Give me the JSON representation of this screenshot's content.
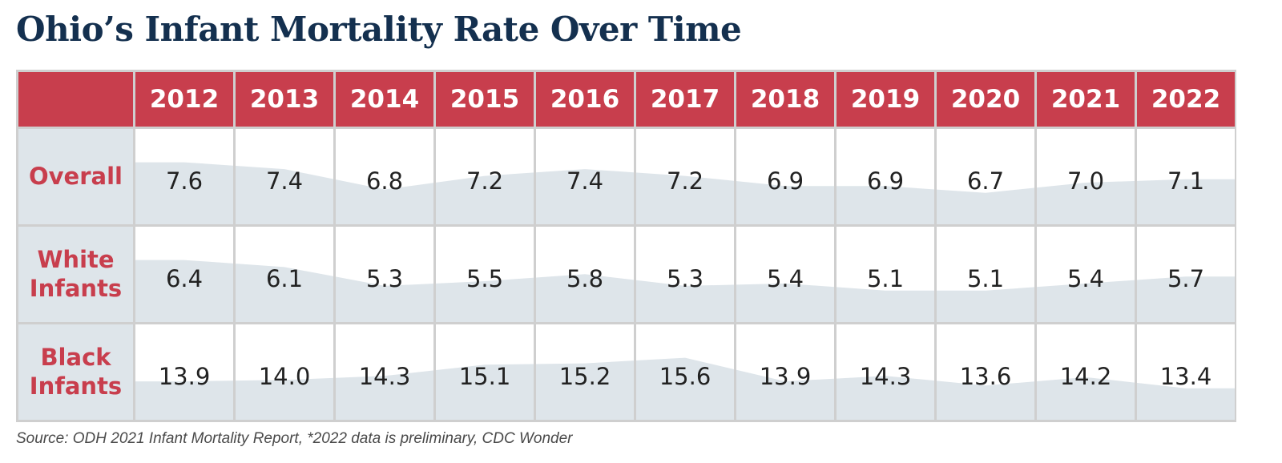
{
  "title": "Ohio’s Infant Mortality Rate Over Time",
  "source": "Source:  ODH 2021 Infant Mortality Report, *2022 data is preliminary, CDC Wonder",
  "colors": {
    "header_bg": "#c83e4d",
    "title": "#14304f",
    "row_label": "#c83e4d",
    "area_fill": "#dee5ea",
    "grid": "#cfcfcf"
  },
  "chart_data": {
    "type": "table",
    "title": "Ohio’s Infant Mortality Rate Over Time",
    "columns": [
      "2012",
      "2013",
      "2014",
      "2015",
      "2016",
      "2017",
      "2018",
      "2019",
      "2020",
      "2021",
      "2022"
    ],
    "rows": [
      {
        "label_lines": [
          "Overall"
        ],
        "values": [
          "7.6",
          "7.4",
          "6.8",
          "7.2",
          "7.4",
          "7.2",
          "6.9",
          "6.9",
          "6.7",
          "7.0",
          "7.1"
        ]
      },
      {
        "label_lines": [
          "White",
          "Infants"
        ],
        "values": [
          "6.4",
          "6.1",
          "5.3",
          "5.5",
          "5.8",
          "5.3",
          "5.4",
          "5.1",
          "5.1",
          "5.4",
          "5.7"
        ]
      },
      {
        "label_lines": [
          "Black",
          "Infants"
        ],
        "values": [
          "13.9",
          "14.0",
          "14.3",
          "15.1",
          "15.2",
          "15.6",
          "13.9",
          "14.3",
          "13.6",
          "14.2",
          "13.4"
        ]
      }
    ]
  }
}
